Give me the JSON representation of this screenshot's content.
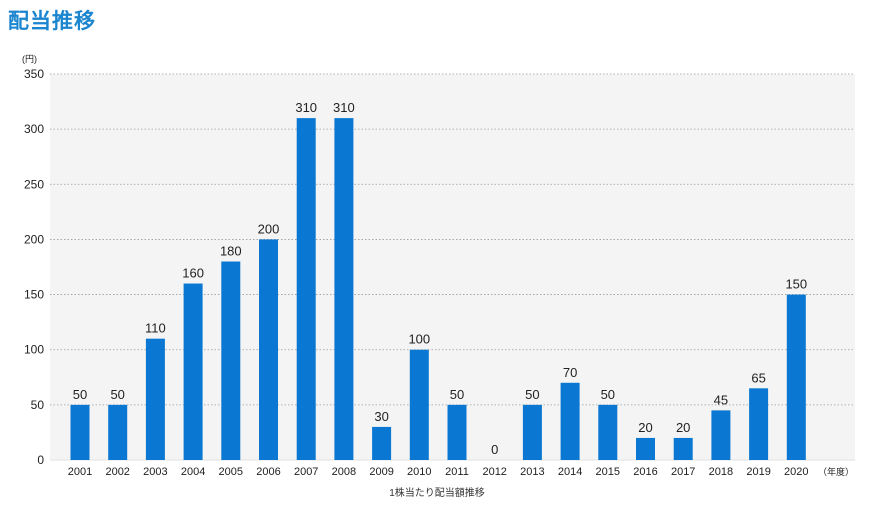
{
  "page": {
    "title": "配当推移"
  },
  "chart_data": {
    "type": "bar",
    "title": "",
    "xlabel": "1株当たり配当額推移",
    "ylabel": "",
    "y_unit_label": "(円)",
    "x_unit_label": "（年度）",
    "ylim": [
      0,
      350
    ],
    "yticks": [
      0,
      50,
      100,
      150,
      200,
      250,
      300,
      350
    ],
    "grid": true,
    "legend": "none",
    "bar_color": "#0a78d2",
    "plot_bg": "#f4f4f4",
    "grid_color": "#9a9a9a",
    "categories": [
      "2001",
      "2002",
      "2003",
      "2004",
      "2005",
      "2006",
      "2007",
      "2008",
      "2009",
      "2010",
      "2011",
      "2012",
      "2013",
      "2014",
      "2015",
      "2016",
      "2017",
      "2018",
      "2019",
      "2020"
    ],
    "values": [
      50,
      50,
      110,
      160,
      180,
      200,
      310,
      310,
      30,
      100,
      50,
      0,
      50,
      70,
      50,
      20,
      20,
      45,
      65,
      150
    ],
    "data_labels": [
      "50",
      "50",
      "110",
      "160",
      "180",
      "200",
      "310",
      "310",
      "30",
      "100",
      "50",
      "0",
      "50",
      "70",
      "50",
      "20",
      "20",
      "45",
      "65",
      "150"
    ]
  }
}
